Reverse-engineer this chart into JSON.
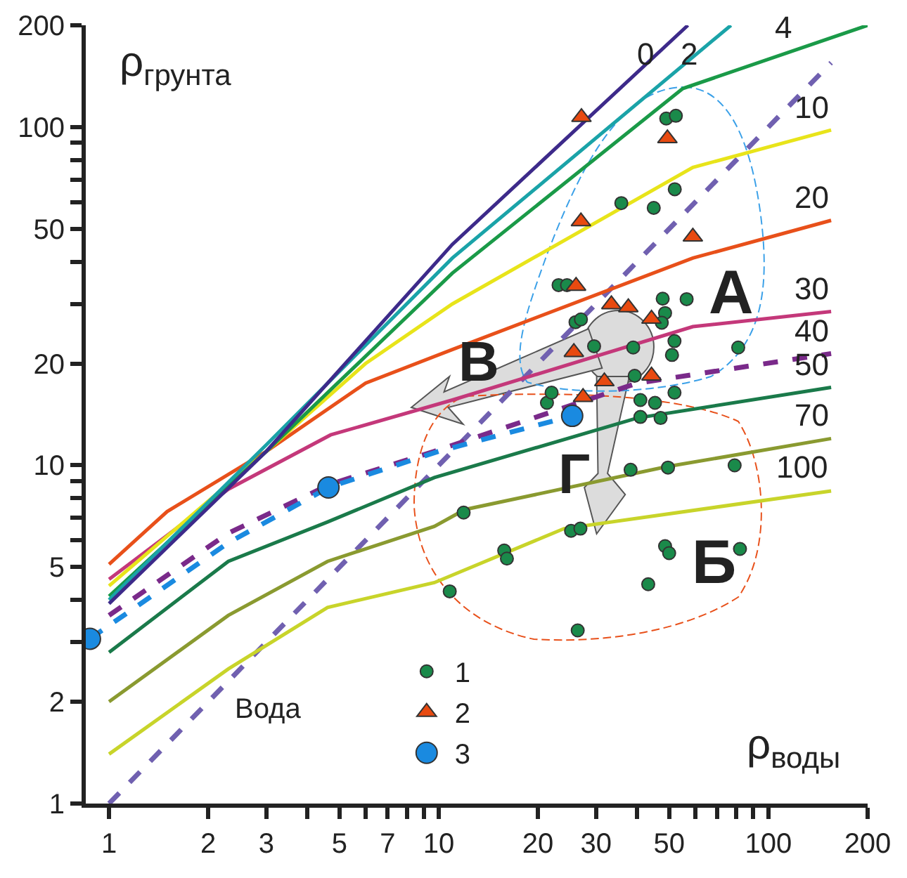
{
  "chart_data": {
    "type": "line",
    "xlabel": "ρ$_{воды}$",
    "ylabel": "ρ$_{грунта}$",
    "log": "xy",
    "legend": "bottom",
    "xlim": [
      0.85,
      200
    ],
    "ylim": [
      1,
      200
    ],
    "xticks": [
      1,
      2,
      3,
      {
        "value": 4,
        "label": null
      },
      5,
      {
        "value": 6,
        "label": null
      },
      7,
      {
        "value": 8,
        "label": null
      },
      {
        "value": 9,
        "label": null
      },
      10,
      20,
      30,
      {
        "value": 40,
        "label": null
      },
      50,
      {
        "value": 60,
        "label": null
      },
      {
        "value": 70,
        "label": null
      },
      {
        "value": 80,
        "label": null
      },
      {
        "value": 90,
        "label": null
      },
      100,
      200
    ],
    "yticks": [
      1,
      2,
      {
        "value": 3,
        "label": null
      },
      {
        "value": 4,
        "label": null
      },
      5,
      {
        "value": 6,
        "label": null
      },
      {
        "value": 7,
        "label": null
      },
      {
        "value": 8,
        "label": null
      },
      {
        "value": 9,
        "label": null
      },
      10,
      20,
      {
        "value": 30,
        "label": null
      },
      {
        "value": 40,
        "label": null
      },
      50,
      {
        "value": 60,
        "label": null
      },
      {
        "value": 70,
        "label": null
      },
      {
        "value": 80,
        "label": null
      },
      {
        "value": 90,
        "label": null
      },
      100,
      200
    ],
    "series": [
      {
        "color": "#7060b0",
        "line_style": "dashed",
        "x": [
          1,
          155
        ],
        "values": [
          1,
          155
        ]
      },
      {
        "color": "#c8d42a",
        "line_style": "solid",
        "x": [
          1,
          2.3,
          4.6,
          9.7,
          24,
          155
        ],
        "values": [
          1.4,
          2.5,
          3.8,
          4.5,
          6.5,
          8.4
        ]
      },
      {
        "color": "#8a9a30",
        "line_style": "solid",
        "x": [
          1,
          2.3,
          4.6,
          9.7,
          12,
          49,
          155
        ],
        "values": [
          2.0,
          3.6,
          5.2,
          6.6,
          7.4,
          9.9,
          12
        ]
      },
      {
        "color": "#1a7a4a",
        "line_style": "solid",
        "x": [
          1,
          2.3,
          4.6,
          9.7,
          40,
          155
        ],
        "values": [
          2.8,
          5.2,
          6.8,
          9.2,
          13.8,
          17
        ]
      },
      {
        "color": "#7a2a8a",
        "line_style": "dashed",
        "x": [
          1,
          2.3,
          4.7,
          9.7,
          40,
          155
        ],
        "values": [
          3.6,
          6.3,
          8.8,
          11,
          17.5,
          21.4
        ]
      },
      {
        "color": "#1a8ae0",
        "line_style": "dashed",
        "x": [
          0.875,
          2.3,
          4.63,
          10,
          25.4
        ],
        "values": [
          3.07,
          5.9,
          8.6,
          11,
          14
        ]
      },
      {
        "color": "#c4387a",
        "line_style": "solid",
        "x": [
          1,
          2.3,
          4.7,
          11,
          59,
          155
        ],
        "values": [
          4.6,
          8.5,
          12.3,
          15.6,
          25.7,
          28.5
        ]
      },
      {
        "color": "#e8501a",
        "line_style": "solid",
        "x": [
          1,
          1.5,
          3,
          6,
          11,
          59,
          155
        ],
        "values": [
          5.1,
          7.3,
          11,
          17.5,
          22,
          41,
          53
        ]
      },
      {
        "color": "#e8e41a",
        "line_style": "solid",
        "x": [
          1,
          3,
          6,
          11,
          59,
          155
        ],
        "values": [
          4.4,
          11,
          20,
          30,
          76,
          98
        ]
      },
      {
        "color": "#1a9a48",
        "line_style": "solid",
        "x": [
          1,
          3,
          11,
          55,
          200
        ],
        "values": [
          4.1,
          11,
          37,
          130,
          200
        ]
      },
      {
        "color": "#1aa3a8",
        "line_style": "solid",
        "x": [
          1,
          3,
          11,
          77
        ],
        "values": [
          4.0,
          11.5,
          41,
          200
        ]
      },
      {
        "color": "#3d2a8a",
        "line_style": "solid",
        "x": [
          1,
          3,
          11,
          57
        ],
        "values": [
          3.9,
          11,
          45,
          200
        ]
      },
      {
        "type": "scatter",
        "name": "1",
        "color": "#1a8a4a",
        "marker": "circle",
        "x": [
          49,
          52.4,
          52,
          35.8,
          44.9,
          23.1,
          24.5,
          47.8,
          56.5,
          26,
          27,
          48.6,
          47.5,
          51.9,
          51,
          29.6,
          38.9,
          81,
          39.3,
          40.9,
          45.3,
          51.9,
          47.1,
          40.9,
          21.3,
          22,
          38.2,
          49.6,
          79,
          11.9,
          25.2,
          26.9,
          15.8,
          16.1,
          10.8,
          48.6,
          50,
          82,
          43.2,
          26.4
        ],
        "values": [
          106,
          108,
          65.5,
          59.6,
          57.7,
          34.1,
          34.1,
          31.1,
          31,
          26.5,
          27,
          28.2,
          26.4,
          23.3,
          21.2,
          22.5,
          22.3,
          22.3,
          18.4,
          15.6,
          15.3,
          16.4,
          13.8,
          13.9,
          15.3,
          16.4,
          9.7,
          9.85,
          10,
          7.25,
          6.4,
          6.5,
          5.6,
          5.3,
          4.24,
          5.77,
          5.5,
          5.66,
          4.45,
          3.25
        ]
      },
      {
        "type": "scatter",
        "name": "2",
        "color": "#e84a10",
        "marker": "triangle",
        "x": [
          27.1,
          49.4,
          27,
          59,
          26.1,
          33.4,
          37.6,
          44.2,
          25.7,
          31.8,
          44.2,
          27.4
        ],
        "values": [
          107,
          92.6,
          52.6,
          47.4,
          33.9,
          29.9,
          29.3,
          27.1,
          21.6,
          17.7,
          18.4,
          15.9
        ]
      },
      {
        "type": "scatter",
        "name": "3",
        "color": "#1a8ae0",
        "marker": "circle",
        "x": [
          0.875,
          4.63,
          25.4
        ],
        "values": [
          3.07,
          8.6,
          14
        ]
      }
    ],
    "annotations": [
      {
        "text": "0",
        "x": 57,
        "y": 200
      },
      {
        "text": "2",
        "x": 77,
        "y": 200
      },
      {
        "text": "4",
        "x": 120,
        "y": 168
      },
      {
        "text": "10",
        "x": 155,
        "y": 98
      },
      {
        "text": "20",
        "x": 155,
        "y": 53
      },
      {
        "text": "30",
        "x": 155,
        "y": 28.5
      },
      {
        "text": "40",
        "x": 155,
        "y": 21.4
      },
      {
        "text": "50",
        "x": 155,
        "y": 17
      },
      {
        "text": "70",
        "x": 155,
        "y": 12
      },
      {
        "text": "100",
        "x": 155,
        "y": 8.4
      },
      "Вода",
      "А",
      "Б",
      "В",
      "Г"
    ]
  }
}
